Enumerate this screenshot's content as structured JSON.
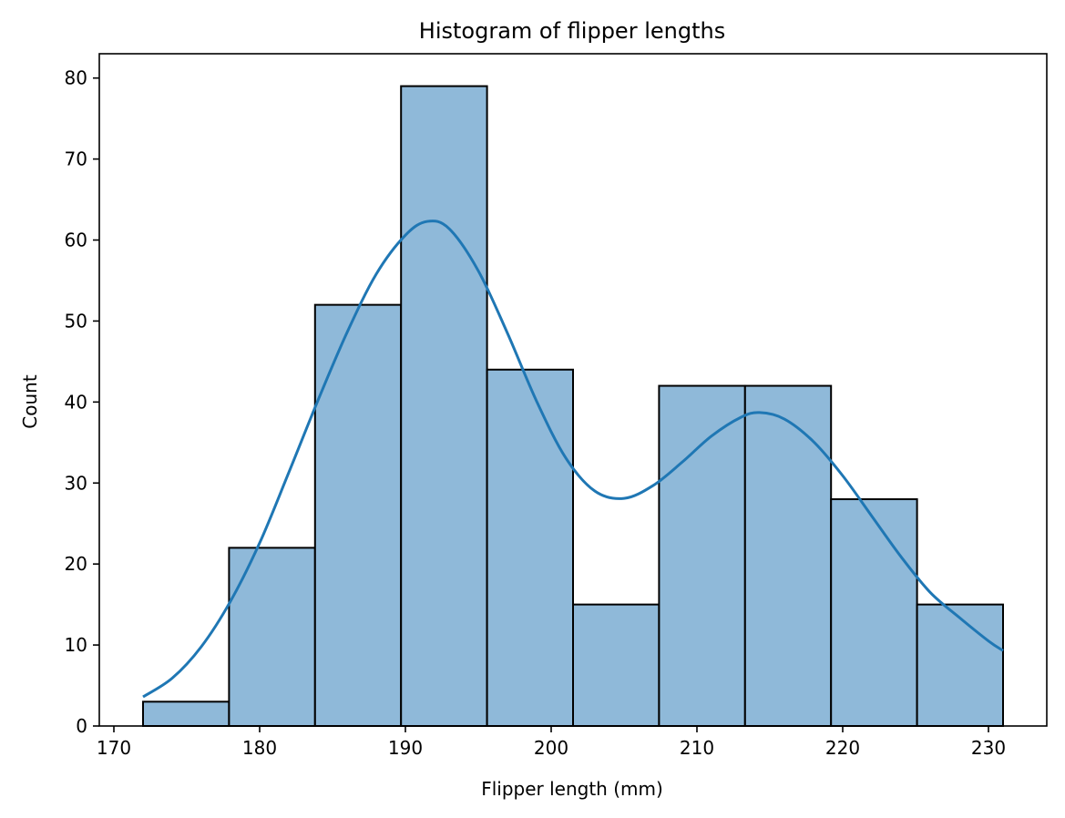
{
  "chart_data": {
    "type": "bar",
    "title": "Histogram of flipper lengths",
    "xlabel": "Flipper length (mm)",
    "ylabel": "Count",
    "xlim": [
      169,
      234
    ],
    "ylim": [
      0,
      83
    ],
    "xticks": [
      170,
      180,
      190,
      200,
      210,
      220,
      230
    ],
    "yticks": [
      0,
      10,
      20,
      30,
      40,
      50,
      60,
      70,
      80
    ],
    "bins": [
      {
        "x0": 172.0,
        "x1": 177.9,
        "count": 3
      },
      {
        "x0": 177.9,
        "x1": 183.8,
        "count": 22
      },
      {
        "x0": 183.8,
        "x1": 189.7,
        "count": 52
      },
      {
        "x0": 189.7,
        "x1": 195.6,
        "count": 79
      },
      {
        "x0": 195.6,
        "x1": 201.5,
        "count": 44
      },
      {
        "x0": 201.5,
        "x1": 207.4,
        "count": 15
      },
      {
        "x0": 207.4,
        "x1": 213.3,
        "count": 42
      },
      {
        "x0": 213.3,
        "x1": 219.2,
        "count": 42
      },
      {
        "x0": 219.2,
        "x1": 225.1,
        "count": 28
      },
      {
        "x0": 225.1,
        "x1": 231.0,
        "count": 15
      }
    ],
    "kde": {
      "x": [
        172,
        174,
        176,
        178,
        180,
        182,
        184,
        186,
        188,
        190,
        191.5,
        193,
        195,
        197,
        199,
        201,
        203,
        205,
        207,
        209,
        211,
        213,
        214.3,
        216,
        218,
        220,
        222,
        224,
        226,
        228,
        230,
        231
      ],
      "y": [
        3.6,
        5.9,
        9.8,
        15.4,
        22.6,
        31.3,
        40.2,
        48.6,
        55.8,
        60.6,
        62.3,
        61.4,
        56.2,
        48.5,
        40.1,
        33.1,
        29.0,
        28.1,
        29.7,
        32.6,
        35.8,
        38.1,
        38.7,
        37.9,
        35.1,
        30.9,
        25.9,
        20.9,
        16.5,
        13.4,
        10.5,
        9.3
      ]
    },
    "colors": {
      "bar_fill": "#8fb9d9",
      "bar_edge": "#000000",
      "kde_line": "#1f77b4"
    },
    "grid": false,
    "legend": "none"
  }
}
